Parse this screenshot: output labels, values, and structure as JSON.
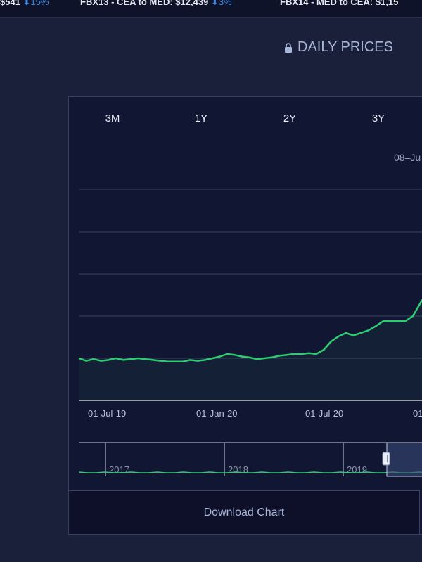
{
  "ticker": {
    "items": [
      {
        "text": "$541",
        "change": "15%"
      },
      {
        "text": "FBX13 - CEA to MED: $12,439",
        "change": "3%"
      },
      {
        "text": "FBX14 - MED to CEA: $1,15",
        "change": ""
      }
    ]
  },
  "header": {
    "title": "DAILY PRICES",
    "lock_icon": "lock-icon"
  },
  "range_buttons": [
    "3M",
    "1Y",
    "2Y",
    "3Y"
  ],
  "readout": "08–Ju",
  "download_label": "Download Chart",
  "colors": {
    "line": "#2ecc71",
    "background": "#111632",
    "accent": "#3f8be8"
  },
  "chart_data": {
    "type": "line",
    "x_ticks": [
      "01-Jul-19",
      "01-Jan-20",
      "01-Jul-20",
      "01"
    ],
    "navigator_years": [
      "2017",
      "2018",
      "2019"
    ],
    "grid": true,
    "series": [
      {
        "values": [
          1.0,
          0.97,
          0.99,
          0.97,
          0.98,
          1.0,
          0.98,
          0.99,
          1.0,
          0.99,
          0.98,
          0.97,
          0.96,
          0.96,
          0.96,
          0.98,
          0.97,
          0.98,
          1.0,
          1.02,
          1.05,
          1.04,
          1.02,
          1.01,
          0.99,
          1.0,
          1.01,
          1.03,
          1.04,
          1.05,
          1.05,
          1.06,
          1.05,
          1.1,
          1.2,
          1.26,
          1.3,
          1.27,
          1.3,
          1.33,
          1.38,
          1.44,
          1.44,
          1.44,
          1.44,
          1.5,
          1.65,
          1.8
        ]
      }
    ]
  }
}
